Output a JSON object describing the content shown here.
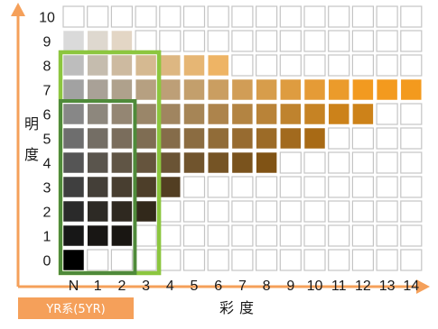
{
  "chart_data": {
    "type": "heatmap",
    "title": "",
    "xlabel": "彩度",
    "ylabel": "明度",
    "series_label": "YR系(5YR)",
    "x_categories": [
      "N",
      "1",
      "2",
      "3",
      "4",
      "5",
      "6",
      "7",
      "8",
      "9",
      "10",
      "11",
      "12",
      "13",
      "14"
    ],
    "y_categories": [
      "0",
      "1",
      "2",
      "3",
      "4",
      "5",
      "6",
      "7",
      "8",
      "9",
      "10"
    ],
    "max_chroma_by_value": {
      "0": 0,
      "1": 2,
      "2": 3,
      "3": 4,
      "4": 8,
      "5": 10,
      "6": 12,
      "7": 14,
      "8": 6,
      "9": 2,
      "10": 0
    },
    "highlight_regions": [
      {
        "label": "light-green-frame",
        "chroma": [
          "N",
          "3"
        ],
        "value": [
          "0",
          "8"
        ],
        "color": "#8cc63f"
      },
      {
        "label": "dark-green-frame",
        "chroma": [
          "N",
          "2"
        ],
        "value": [
          "0",
          "6"
        ],
        "color": "#4f8a3a"
      }
    ],
    "colors": {
      "hue_accent": "#f39a1e",
      "neutral_black": "#000000",
      "empty_cell_border": "#c4c4c4",
      "axis_arrow": "#f5a05a",
      "badge": "#f5a05a"
    }
  }
}
